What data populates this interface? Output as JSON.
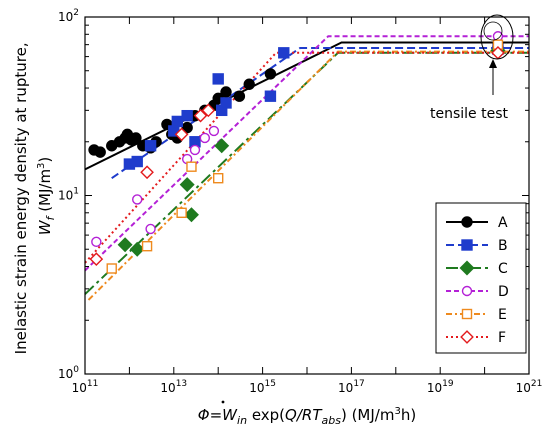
{
  "chart_data": {
    "type": "scatter",
    "x_scale": "log",
    "y_scale": "log",
    "xlim": [
      100000000000.0,
      1e+21
    ],
    "ylim": [
      1,
      100
    ],
    "x_ticks": [
      {
        "v": 100000000000.0,
        "base": "10",
        "exp": "11"
      },
      {
        "v": 10000000000000.0,
        "base": "10",
        "exp": "13"
      },
      {
        "v": 1000000000000000.0,
        "base": "10",
        "exp": "15"
      },
      {
        "v": 1e+17,
        "base": "10",
        "exp": "17"
      },
      {
        "v": 1e+19,
        "base": "10",
        "exp": "19"
      },
      {
        "v": 1e+21,
        "base": "10",
        "exp": "21"
      }
    ],
    "y_ticks": [
      {
        "v": 1,
        "base": "10",
        "exp": "0"
      },
      {
        "v": 10,
        "base": "10",
        "exp": "1"
      },
      {
        "v": 100,
        "base": "10",
        "exp": "2"
      }
    ],
    "ylabel": {
      "line1": "Inelastic strain energy density at rupture,",
      "sym": "W",
      "sub": "f",
      "units_pre": " (MJ/m",
      "units_sup": "3",
      "units_post": ")"
    },
    "xlabel": {
      "phi": "Φ=",
      "w": "W",
      "w_sub": "in",
      "exp_pre": " exp(",
      "q": "Q/RT",
      "q_sub": "abs",
      "exp_post": ")",
      "units_pre": "  (MJ/m",
      "units_sup": "3",
      "units_post": "h)"
    },
    "annotation": "tensile test",
    "series": [
      {
        "name": "A",
        "color": "#000000",
        "marker": "circle",
        "filled": true,
        "dash": "",
        "points": [
          [
            160000000000.0,
            18
          ],
          [
            220000000000.0,
            17.5
          ],
          [
            400000000000.0,
            19
          ],
          [
            600000000000.0,
            20
          ],
          [
            800000000000.0,
            21
          ],
          [
            900000000000.0,
            22
          ],
          [
            1100000000000.0,
            20.5
          ],
          [
            1400000000000.0,
            21
          ],
          [
            2000000000000.0,
            19
          ],
          [
            3000000000000.0,
            18.5
          ],
          [
            4000000000000.0,
            20
          ],
          [
            7000000000000.0,
            25
          ],
          [
            9000000000000.0,
            22
          ],
          [
            12000000000000.0,
            21
          ],
          [
            20000000000000.0,
            24
          ],
          [
            30000000000000.0,
            28
          ],
          [
            50000000000000.0,
            30
          ],
          [
            80000000000000.0,
            32
          ],
          [
            100000000000000.0,
            35
          ],
          [
            150000000000000.0,
            38
          ],
          [
            300000000000000.0,
            36
          ],
          [
            500000000000000.0,
            42
          ],
          [
            1500000000000000.0,
            48
          ],
          [
            2e+20,
            68
          ]
        ],
        "fit": [
          [
            100000000000.0,
            14
          ],
          [
            6e+16,
            72
          ],
          [
            1e+21,
            72
          ]
        ]
      },
      {
        "name": "B",
        "color": "#1f3ccc",
        "marker": "square",
        "filled": true,
        "dash": "8 4",
        "points": [
          [
            1000000000000.0,
            15
          ],
          [
            1500000000000.0,
            15.5
          ],
          [
            3000000000000.0,
            19
          ],
          [
            10000000000000.0,
            23
          ],
          [
            12000000000000.0,
            26
          ],
          [
            20000000000000.0,
            28
          ],
          [
            30000000000000.0,
            20
          ],
          [
            100000000000000.0,
            45
          ],
          [
            120000000000000.0,
            30
          ],
          [
            150000000000000.0,
            33
          ],
          [
            1500000000000000.0,
            36
          ],
          [
            3000000000000000.0,
            63
          ],
          [
            2e+20,
            66
          ]
        ],
        "fit": [
          [
            400000000000.0,
            12.5
          ],
          [
            7000000000000000.0,
            67
          ],
          [
            1e+21,
            67
          ]
        ]
      },
      {
        "name": "C",
        "color": "#1f7a1f",
        "marker": "diamond",
        "filled": true,
        "dash": "12 4 3 4",
        "points": [
          [
            800000000000.0,
            5.3
          ],
          [
            1500000000000.0,
            5
          ],
          [
            20000000000000.0,
            11.5
          ],
          [
            25000000000000.0,
            7.8
          ],
          [
            120000000000000.0,
            19
          ],
          [
            2e+20,
            65
          ]
        ],
        "fit": [
          [
            100000000000.0,
            2.8
          ],
          [
            5e+16,
            63
          ],
          [
            1e+21,
            63
          ]
        ]
      },
      {
        "name": "D",
        "color": "#b421d6",
        "marker": "circle",
        "filled": false,
        "dash": "5 3",
        "points": [
          [
            180000000000.0,
            5.5
          ],
          [
            1500000000000.0,
            9.5
          ],
          [
            3000000000000.0,
            6.5
          ],
          [
            20000000000000.0,
            16
          ],
          [
            30000000000000.0,
            18
          ],
          [
            50000000000000.0,
            21
          ],
          [
            80000000000000.0,
            23
          ],
          [
            2e+20,
            78
          ]
        ],
        "fit": [
          [
            100000000000.0,
            3.8
          ],
          [
            3e+16,
            78
          ],
          [
            1e+21,
            78
          ]
        ]
      },
      {
        "name": "E",
        "color": "#ee8a1e",
        "marker": "square",
        "filled": false,
        "dash": "6 3 2 3",
        "points": [
          [
            400000000000.0,
            3.9
          ],
          [
            2500000000000.0,
            5.2
          ],
          [
            15000000000000.0,
            8
          ],
          [
            25000000000000.0,
            14.5
          ],
          [
            100000000000000.0,
            12.5
          ],
          [
            2e+20,
            70
          ]
        ],
        "fit": [
          [
            120000000000.0,
            2.6
          ],
          [
            5e+16,
            64
          ],
          [
            1e+21,
            64
          ]
        ]
      },
      {
        "name": "F",
        "color": "#e31a1c",
        "marker": "diamond",
        "filled": false,
        "dash": "2 3",
        "points": [
          [
            180000000000.0,
            4.4
          ],
          [
            2500000000000.0,
            13.5
          ],
          [
            15000000000000.0,
            22
          ],
          [
            40000000000000.0,
            28
          ],
          [
            60000000000000.0,
            30
          ],
          [
            2e+20,
            63
          ]
        ],
        "fit": [
          [
            100000000000.0,
            4.2
          ],
          [
            2000000000000000.0,
            63
          ],
          [
            1e+21,
            63
          ]
        ]
      }
    ],
    "legend": {
      "position": "bottom-right",
      "entries": [
        "A",
        "B",
        "C",
        "D",
        "E",
        "F"
      ]
    }
  }
}
